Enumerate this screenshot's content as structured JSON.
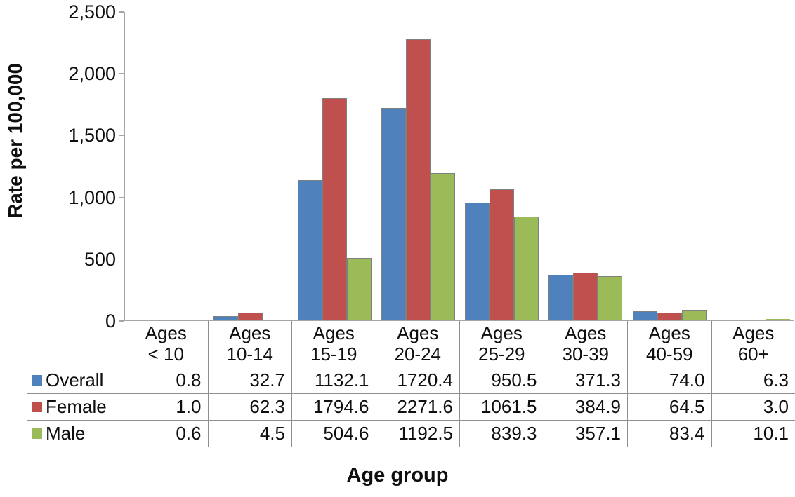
{
  "chart_data": {
    "type": "bar",
    "title": "",
    "xlabel": "Age group",
    "ylabel": "Rate per 100,000",
    "ylim": [
      0,
      2500
    ],
    "ytick_interval": 500,
    "ytick_labels": [
      "0",
      "500",
      "1,000",
      "1,500",
      "2,000",
      "2,500"
    ],
    "grid": false,
    "legend_position": "table-rows-left",
    "categories": [
      "Ages < 10",
      "Ages 10-14",
      "Ages 15-19",
      "Ages 20-24",
      "Ages 25-29",
      "Ages 30-39",
      "Ages 40-59",
      "Ages 60+"
    ],
    "series": [
      {
        "name": "Overall",
        "color": "#4f81bd",
        "values": [
          0.8,
          32.7,
          1132.1,
          1720.4,
          950.5,
          371.3,
          74.0,
          6.3
        ]
      },
      {
        "name": "Female",
        "color": "#c0504d",
        "values": [
          1.0,
          62.3,
          1794.6,
          2271.6,
          1061.5,
          384.9,
          64.5,
          3.0
        ]
      },
      {
        "name": "Male",
        "color": "#9bbb59",
        "values": [
          0.6,
          4.5,
          504.6,
          1192.5,
          839.3,
          357.1,
          83.4,
          10.1
        ]
      }
    ]
  },
  "table": {
    "column_headers": [
      {
        "line1": "Ages",
        "line2": "< 10"
      },
      {
        "line1": "Ages",
        "line2": "10-14"
      },
      {
        "line1": "Ages",
        "line2": "15-19"
      },
      {
        "line1": "Ages",
        "line2": "20-24"
      },
      {
        "line1": "Ages",
        "line2": "25-29"
      },
      {
        "line1": "Ages",
        "line2": "30-39"
      },
      {
        "line1": "Ages",
        "line2": "40-59"
      },
      {
        "line1": "Ages",
        "line2": "60+"
      }
    ],
    "rows": [
      {
        "label": "Overall",
        "values": [
          "0.8",
          "32.7",
          "1132.1",
          "1720.4",
          "950.5",
          "371.3",
          "74.0",
          "6.3"
        ]
      },
      {
        "label": "Female",
        "values": [
          "1.0",
          "62.3",
          "1794.6",
          "2271.6",
          "1061.5",
          "384.9",
          "64.5",
          "3.0"
        ]
      },
      {
        "label": "Male",
        "values": [
          "0.6",
          "4.5",
          "504.6",
          "1192.5",
          "839.3",
          "357.1",
          "83.4",
          "10.1"
        ]
      }
    ]
  },
  "colors": {
    "axis": "#a6a6a6",
    "table_border": "#8f8f8f",
    "bar_border": "#7f7f7f",
    "text": "#0f0f0f",
    "background": "#ffffff"
  }
}
